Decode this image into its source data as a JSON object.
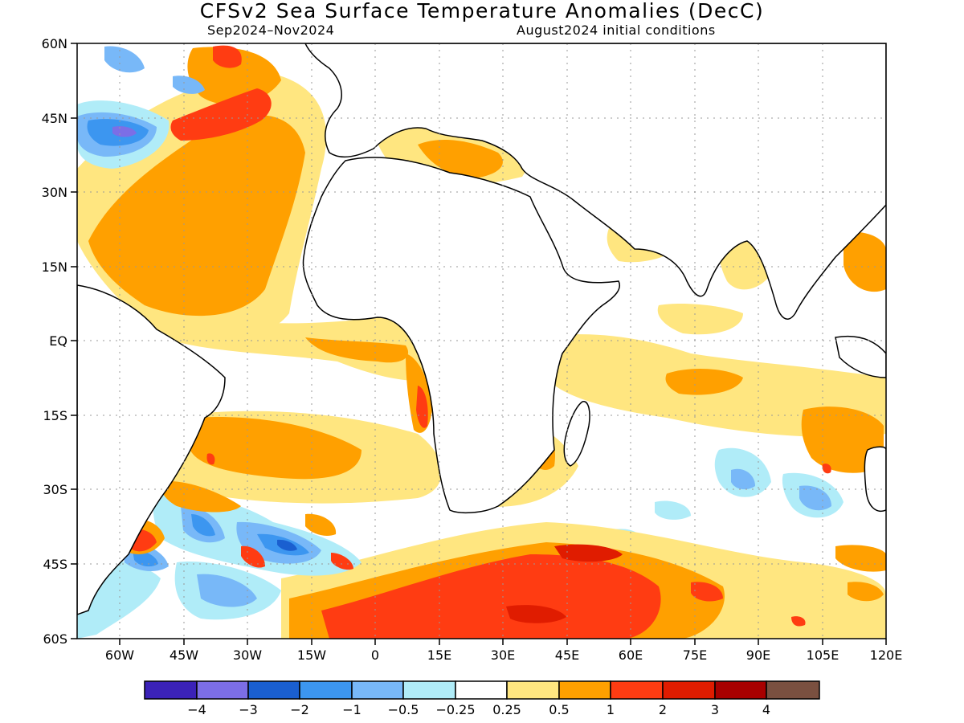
{
  "title": "CFSv2 Sea Surface Temperature Anomalies (DecC)",
  "subtitle_left": "Sep2024–Nov2024",
  "subtitle_right": "August2024 initial conditions",
  "lat_labels": [
    "60N",
    "45N",
    "30N",
    "15N",
    "EQ",
    "15S",
    "30S",
    "45S",
    "60S"
  ],
  "lon_labels": [
    "60W",
    "45W",
    "30W",
    "15W",
    "0",
    "15E",
    "30E",
    "45E",
    "60E",
    "75E",
    "90E",
    "105E",
    "120E"
  ],
  "colorbar": {
    "colors": [
      "#3b22b8",
      "#7c6ee6",
      "#1a5fd0",
      "#3c96f0",
      "#78b8f8",
      "#b0ecf8",
      "#ffffff",
      "#ffe680",
      "#ffa000",
      "#ff3c12",
      "#e01c00",
      "#a80000",
      "#7a5040"
    ],
    "labels": [
      "−4",
      "−3",
      "−2",
      "−1",
      "−0.5",
      "−0.25",
      "0.25",
      "0.5",
      "1",
      "2",
      "3",
      "4"
    ]
  }
}
